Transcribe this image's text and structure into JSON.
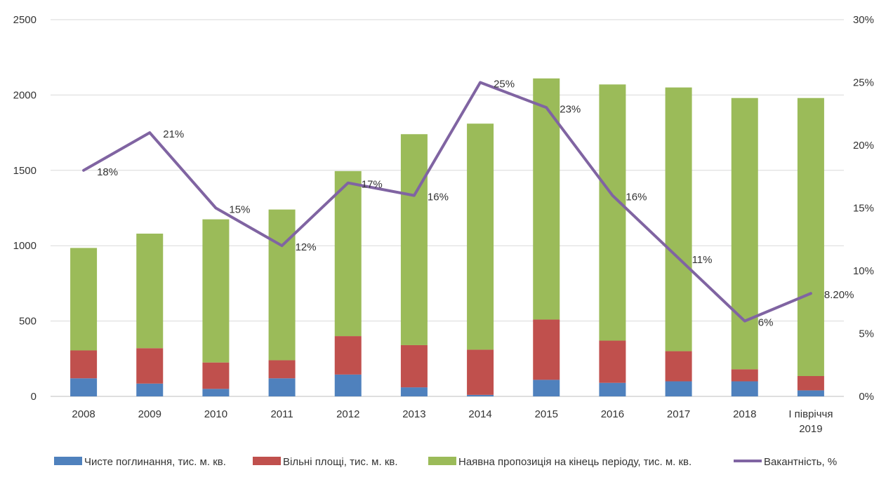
{
  "chart_data": {
    "type": "bar",
    "stacked": true,
    "categories": [
      "2008",
      "2009",
      "2010",
      "2011",
      "2012",
      "2013",
      "2014",
      "2015",
      "2016",
      "2017",
      "2018",
      "І півріччя 2019"
    ],
    "category_lines": [
      [
        "2008"
      ],
      [
        "2009"
      ],
      [
        "2010"
      ],
      [
        "2011"
      ],
      [
        "2012"
      ],
      [
        "2013"
      ],
      [
        "2014"
      ],
      [
        "2015"
      ],
      [
        "2016"
      ],
      [
        "2017"
      ],
      [
        "2018"
      ],
      [
        "І півріччя",
        "2019"
      ]
    ],
    "series": [
      {
        "name": "Чисте поглинання, тис. м. кв.",
        "type": "bar",
        "axis": "left",
        "color": "#4F81BD",
        "values": [
          120,
          85,
          50,
          120,
          145,
          60,
          10,
          110,
          90,
          100,
          100,
          40
        ]
      },
      {
        "name": "Вільні площі, тис. м. кв.",
        "type": "bar",
        "axis": "left",
        "color": "#C0504D",
        "values": [
          185,
          235,
          175,
          120,
          255,
          280,
          300,
          400,
          280,
          200,
          80,
          95
        ]
      },
      {
        "name": "Наявна пропозиція на кінець періоду, тис. м. кв.",
        "type": "bar",
        "axis": "left",
        "color": "#9BBB59",
        "values": [
          680,
          760,
          950,
          1000,
          1095,
          1400,
          1500,
          1600,
          1700,
          1750,
          1800,
          1845
        ]
      },
      {
        "name": "Вакантність, %",
        "type": "line",
        "axis": "right",
        "color": "#8064A2",
        "values": [
          18,
          21,
          15,
          12,
          17,
          16,
          25,
          23,
          16,
          11,
          6,
          8.2
        ],
        "labels": [
          "18%",
          "21%",
          "15%",
          "12%",
          "17%",
          "16%",
          "25%",
          "23%",
          "16%",
          "11%",
          "6%",
          "8.20%"
        ]
      }
    ],
    "y_left": {
      "min": 0,
      "max": 2500,
      "ticks": [
        "0",
        "500",
        "1000",
        "1500",
        "2000",
        "2500"
      ]
    },
    "y_right": {
      "min": 0,
      "max": 30,
      "ticks": [
        "0%",
        "5%",
        "10%",
        "15%",
        "20%",
        "25%",
        "30%"
      ]
    },
    "grid": true,
    "legend_position": "bottom"
  }
}
